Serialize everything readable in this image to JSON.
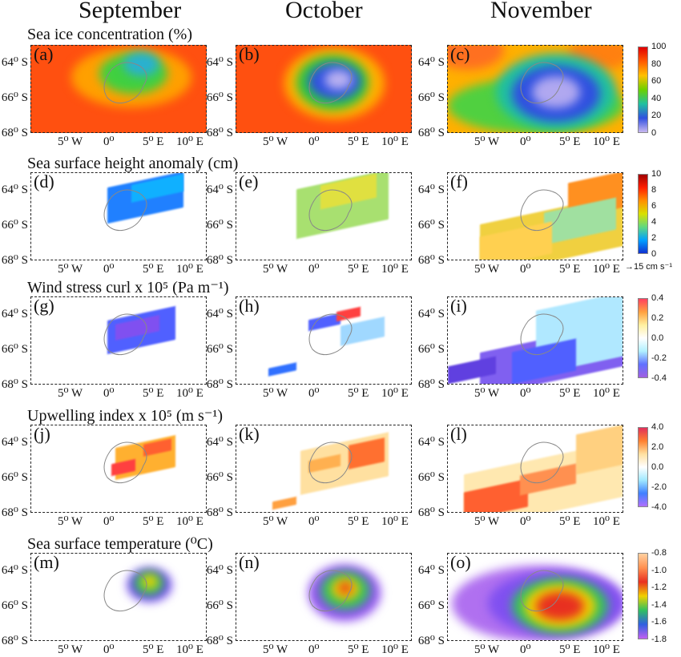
{
  "months": [
    "September",
    "October",
    "November"
  ],
  "rows": [
    {
      "title": "Sea ice concentration (%)",
      "labels": [
        "(a)",
        "(b)",
        "(c)"
      ],
      "colorbar": [
        "100",
        "80",
        "60",
        "40",
        "20",
        "0"
      ]
    },
    {
      "title": "Sea surface height anomaly (cm)",
      "labels": [
        "(d)",
        "(e)",
        "(f)"
      ],
      "colorbar": [
        "10",
        "8",
        "6",
        "4",
        "2",
        "0"
      ],
      "reference_vector": "→15 cm s⁻¹"
    },
    {
      "title": "Wind stress curl x 10⁵ (Pa m⁻¹)",
      "labels": [
        "(g)",
        "(h)",
        "(i)"
      ],
      "colorbar": [
        "0.4",
        "0.2",
        "0.0",
        "-0.2",
        "-0.4"
      ]
    },
    {
      "title": "Upwelling index x 10⁵ (m s⁻¹)",
      "labels": [
        "(j)",
        "(k)",
        "(l)"
      ],
      "colorbar": [
        "4.0",
        "2.0",
        "0.0",
        "-2.0",
        "-4.0"
      ]
    },
    {
      "title": "Sea surface temperature (⁰C)",
      "labels": [
        "(m)",
        "(n)",
        "(o)"
      ],
      "colorbar": [
        "-0.8",
        "-1.0",
        "-1.2",
        "-1.4",
        "-1.6",
        "-1.8"
      ]
    }
  ],
  "lat_ticks": [
    "64⁰ S",
    "66⁰ S",
    "68⁰ S"
  ],
  "lon_ticks": [
    "5⁰ W",
    "0⁰",
    "5⁰ E",
    "10⁰ E"
  ]
}
